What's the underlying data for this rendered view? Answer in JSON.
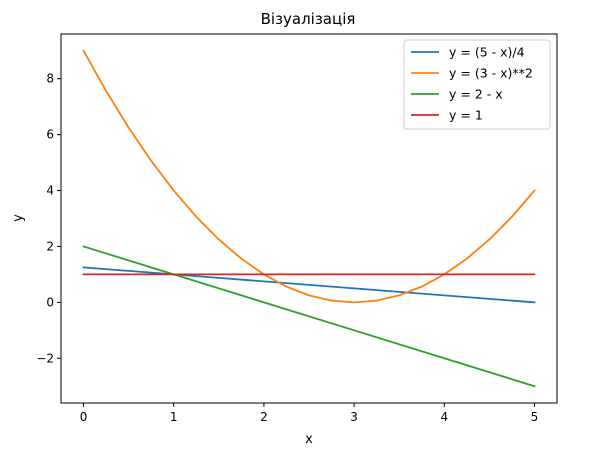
{
  "chart_data": {
    "type": "line",
    "title": "Візуалізація",
    "xlabel": "x",
    "ylabel": "y",
    "xlim": [
      -0.25,
      5.25
    ],
    "ylim": [
      -3.6,
      9.6
    ],
    "xticks": [
      0,
      1,
      2,
      3,
      4,
      5
    ],
    "yticks": [
      -2,
      0,
      2,
      4,
      6,
      8
    ],
    "tick_labels_x": [
      "0",
      "1",
      "2",
      "3",
      "4",
      "5"
    ],
    "tick_labels_y": [
      "−2",
      "0",
      "2",
      "4",
      "6",
      "8"
    ],
    "grid": false,
    "legend_position": "top-right",
    "series": [
      {
        "name": "y = (5 - x)/4",
        "color": "#1f77b4",
        "x": [
          0,
          0.5,
          1,
          1.5,
          2,
          2.5,
          3,
          3.5,
          4,
          4.5,
          5
        ],
        "y": [
          1.25,
          1.125,
          1.0,
          0.875,
          0.75,
          0.625,
          0.5,
          0.375,
          0.25,
          0.125,
          0.0
        ]
      },
      {
        "name": "y = (3 - x)**2",
        "color": "#ff7f0e",
        "x": [
          0,
          0.25,
          0.5,
          0.75,
          1,
          1.25,
          1.5,
          1.75,
          2,
          2.25,
          2.5,
          2.75,
          3,
          3.25,
          3.5,
          3.75,
          4,
          4.25,
          4.5,
          4.75,
          5
        ],
        "y": [
          9.0,
          7.5625,
          6.25,
          5.0625,
          4.0,
          3.0625,
          2.25,
          1.5625,
          1.0,
          0.5625,
          0.25,
          0.0625,
          0.0,
          0.0625,
          0.25,
          0.5625,
          1.0,
          1.5625,
          2.25,
          3.0625,
          4.0
        ]
      },
      {
        "name": "y = 2 - x",
        "color": "#2ca02c",
        "x": [
          0,
          1,
          2,
          3,
          4,
          5
        ],
        "y": [
          2,
          1,
          0,
          -1,
          -2,
          -3
        ]
      },
      {
        "name": "y = 1",
        "color": "#d62728",
        "x": [
          0,
          5
        ],
        "y": [
          1,
          1
        ]
      }
    ]
  }
}
